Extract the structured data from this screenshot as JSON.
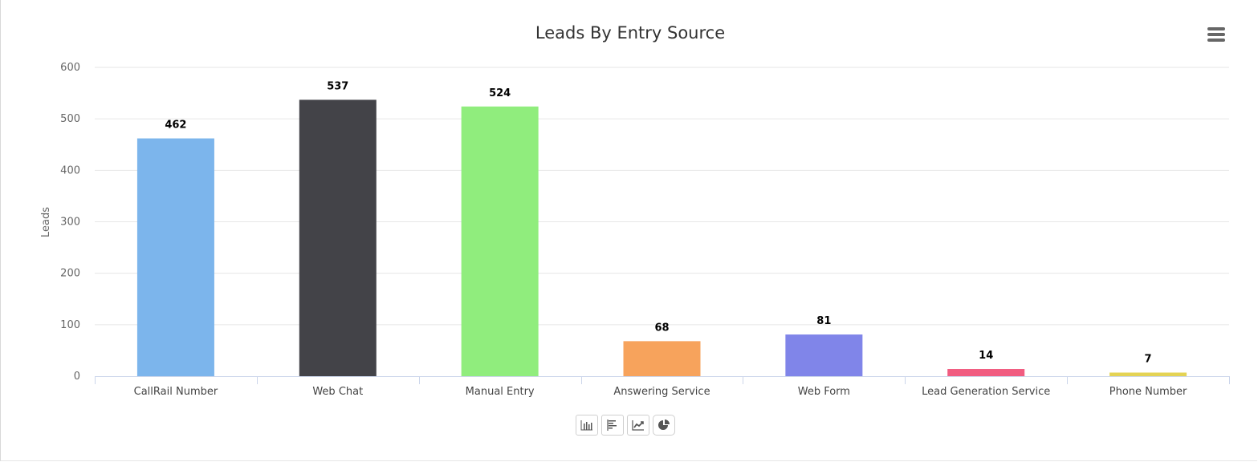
{
  "chart_data": {
    "type": "bar",
    "title": "Leads By Entry Source",
    "ylabel": "Leads",
    "xlabel": "",
    "ylim": [
      0,
      600
    ],
    "yticks": [
      0,
      100,
      200,
      300,
      400,
      500,
      600
    ],
    "grid": true,
    "categories": [
      "CallRail Number",
      "Web Chat",
      "Manual Entry",
      "Answering Service",
      "Web Form",
      "Lead Generation Service",
      "Phone Number"
    ],
    "values": [
      462,
      537,
      524,
      68,
      81,
      14,
      7
    ],
    "colors": [
      "#7cb5ec",
      "#434348",
      "#90ed7d",
      "#f7a35c",
      "#8085e9",
      "#f15c80",
      "#e4d354"
    ],
    "data_labels": [
      "462",
      "537",
      "524",
      "68",
      "81",
      "14",
      "7"
    ]
  },
  "toolbar": {
    "icons": [
      "bar-chart-icon",
      "horizontal-bar-chart-icon",
      "line-chart-icon",
      "pie-chart-icon"
    ]
  }
}
